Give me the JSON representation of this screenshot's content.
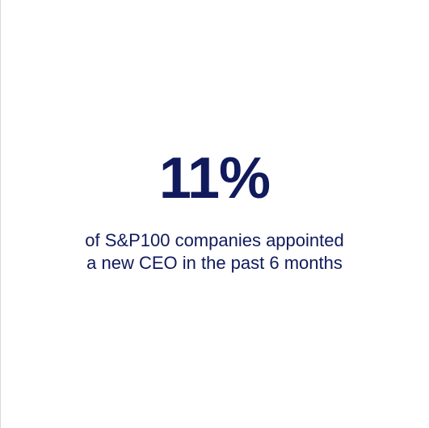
{
  "stat": {
    "value": "11%",
    "caption_lines": [
      "of S&P100 companies appointed",
      "a new CEO in the past 6 months"
    ]
  },
  "colors": {
    "text": "#101a5c",
    "background": "#ffffff",
    "edge": "#d9d9d9"
  }
}
